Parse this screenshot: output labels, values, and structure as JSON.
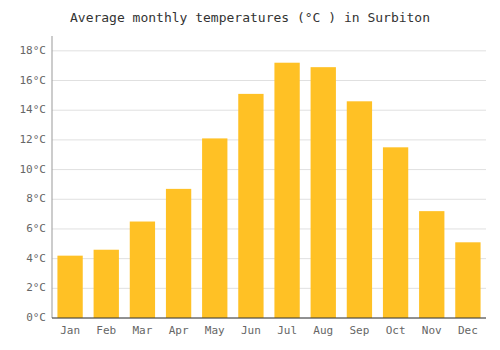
{
  "chart_data": {
    "type": "bar",
    "title": "Average monthly temperatures (°C ) in Surbiton",
    "categories": [
      "Jan",
      "Feb",
      "Mar",
      "Apr",
      "May",
      "Jun",
      "Jul",
      "Aug",
      "Sep",
      "Oct",
      "Nov",
      "Dec"
    ],
    "values": [
      4.2,
      4.6,
      6.5,
      8.7,
      12.1,
      15.1,
      17.2,
      16.9,
      14.6,
      11.5,
      7.2,
      5.1
    ],
    "color": "#FFC125",
    "ylim": [
      0,
      19
    ],
    "yticks": [
      {
        "value": 0,
        "label": "0°C"
      },
      {
        "value": 2,
        "label": "2°C"
      },
      {
        "value": 4,
        "label": "4°C"
      },
      {
        "value": 6,
        "label": "6°C"
      },
      {
        "value": 8,
        "label": "8°C"
      },
      {
        "value": 10,
        "label": "10°C"
      },
      {
        "value": 12,
        "label": "12°C"
      },
      {
        "value": 14,
        "label": "14°C"
      },
      {
        "value": 16,
        "label": "16°C"
      },
      {
        "value": 18,
        "label": "18°C"
      }
    ],
    "grid": true
  }
}
